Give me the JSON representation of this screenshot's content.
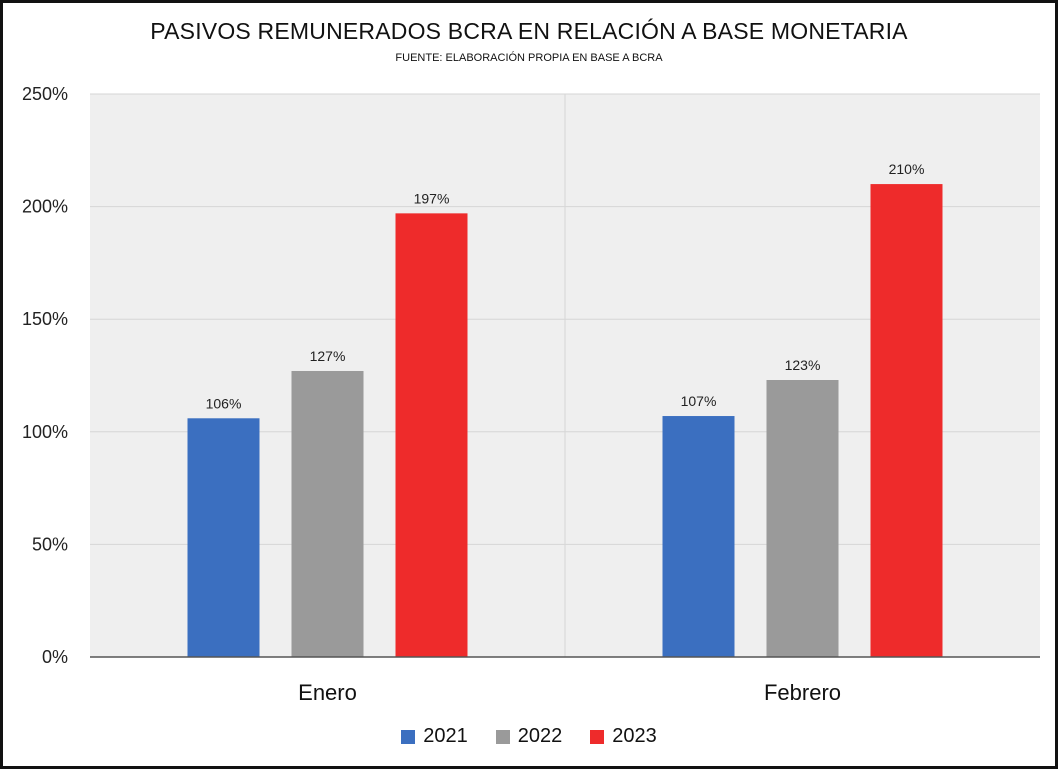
{
  "chart_data": {
    "type": "bar",
    "title": "PASIVOS REMUNERADOS BCRA EN RELACIÓN A BASE MONETARIA",
    "subtitle": "FUENTE: ELABORACIÓN PROPIA EN BASE A BCRA",
    "categories": [
      "Enero",
      "Febrero"
    ],
    "series": [
      {
        "name": "2021",
        "color": "#3b6fc0",
        "values": [
          106,
          107
        ]
      },
      {
        "name": "2022",
        "color": "#9a9a9a",
        "values": [
          127,
          123
        ]
      },
      {
        "name": "2023",
        "color": "#ee2b2b",
        "values": [
          197,
          210
        ]
      }
    ],
    "data_labels": [
      [
        "106%",
        "107%"
      ],
      [
        "127%",
        "123%"
      ],
      [
        "197%",
        "210%"
      ]
    ],
    "ylim": [
      0,
      250
    ],
    "yticks": [
      0,
      50,
      100,
      150,
      200,
      250
    ],
    "ytick_labels": [
      "0%",
      "50%",
      "100%",
      "150%",
      "200%",
      "250%"
    ],
    "grid": true,
    "legend_position": "bottom"
  }
}
